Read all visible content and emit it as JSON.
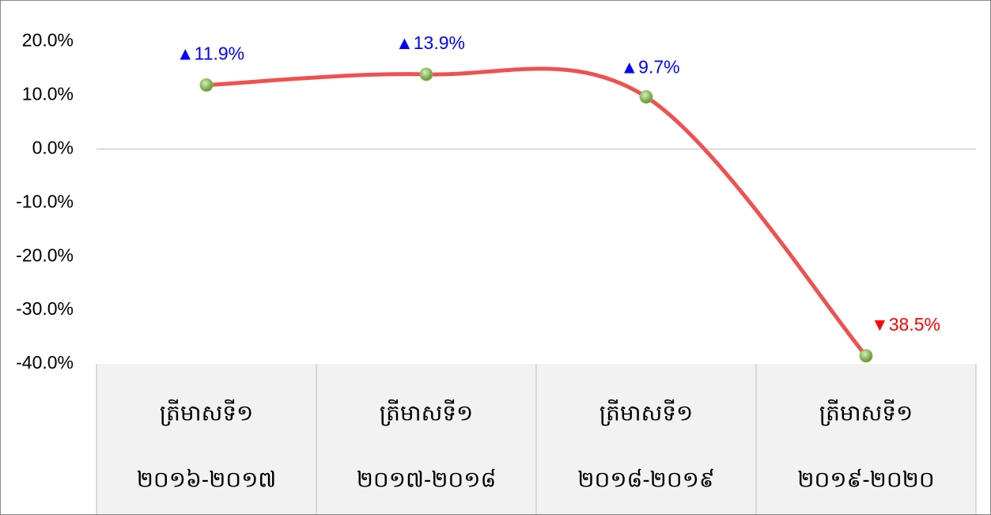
{
  "chart_data": {
    "type": "line",
    "categories": [
      [
        "ត្រីមាសទី១",
        "២០១៦-២០១៧"
      ],
      [
        "ត្រីមាសទី១",
        "២០១៧-២០១៨"
      ],
      [
        "ត្រីមាសទី១",
        "២០១៨-២០១៩"
      ],
      [
        "ត្រីមាសទី១",
        "២០១៩-២០២០"
      ]
    ],
    "values": [
      11.9,
      13.9,
      9.7,
      -38.5
    ],
    "value_labels": [
      "▲11.9%",
      "▲13.9%",
      "▲9.7%",
      "▼38.5%"
    ],
    "value_label_colors": [
      "#0000ff",
      "#0000ff",
      "#0000ff",
      "#ff0000"
    ],
    "color": "#f05050",
    "marker_color": "#8fbf5a",
    "smooth": true,
    "ylim": [
      -40,
      27
    ],
    "yticks": [
      {
        "value": 20,
        "label": "20.0%"
      },
      {
        "value": 10,
        "label": "10.0%"
      },
      {
        "value": 0,
        "label": "0.0%"
      },
      {
        "value": -10,
        "label": "-10.0%"
      },
      {
        "value": -20,
        "label": "-20.0%"
      },
      {
        "value": -30,
        "label": "-30.0%"
      },
      {
        "value": -40,
        "label": "-40.0%"
      }
    ]
  }
}
